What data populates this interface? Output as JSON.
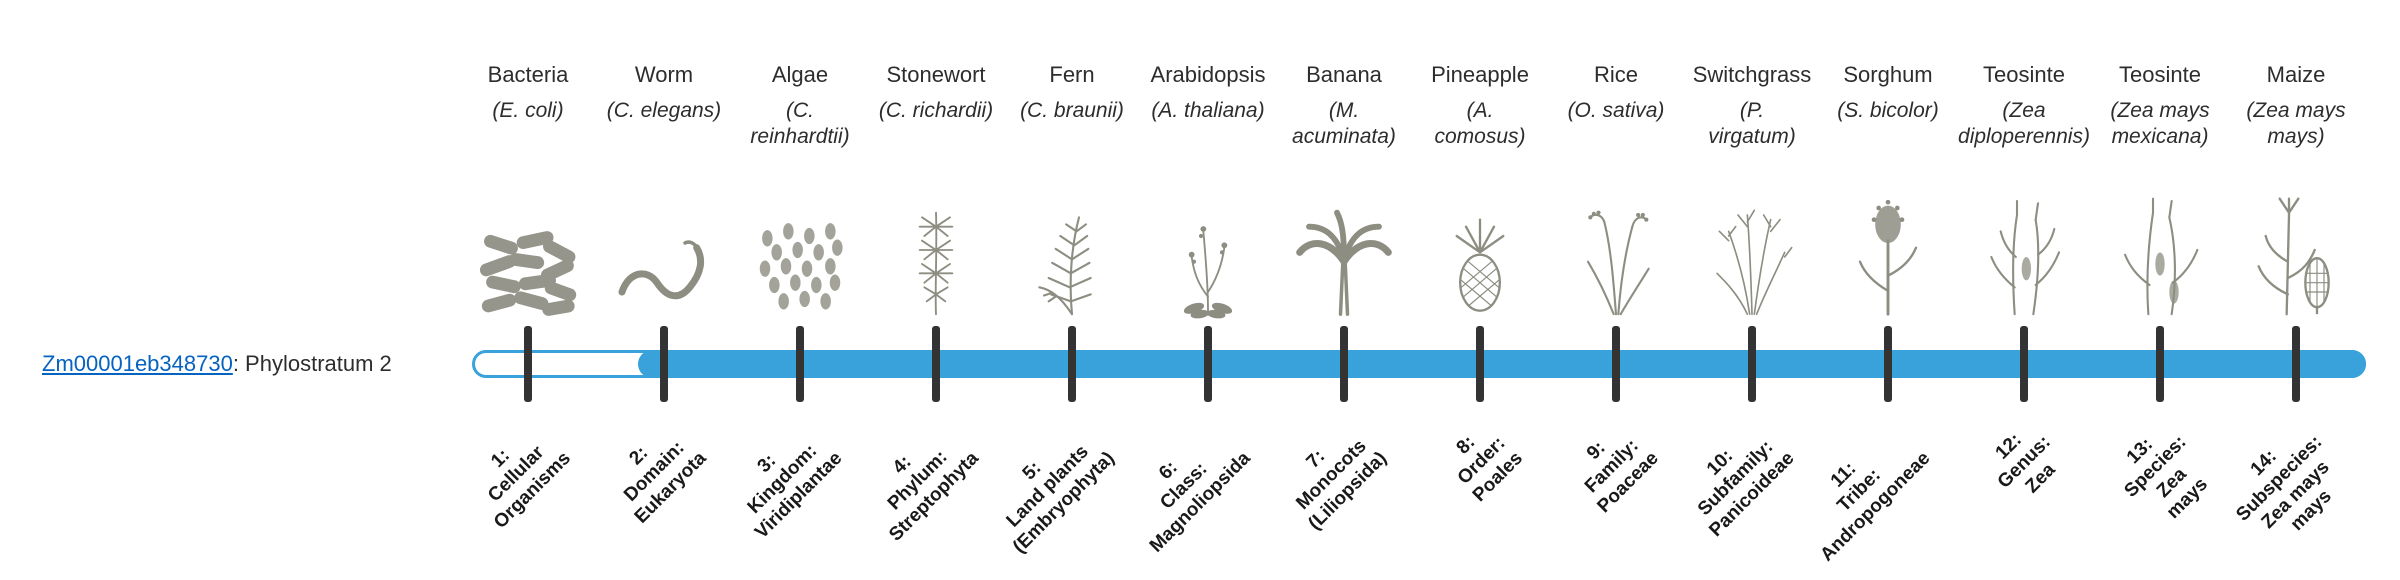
{
  "theme": {
    "bar_color": "#39A2DB",
    "tick_color": "#333333",
    "link_color": "#0563C1",
    "icon_color": "#8D8D82",
    "text_color": "#2D2D2D"
  },
  "gene": {
    "id": "Zm00001eb348730",
    "suffix": ": Phylostratum 2",
    "phylostratum": 2
  },
  "organisms": [
    {
      "name": "Bacteria",
      "sci": "(E. coli)",
      "icon": "bacteria"
    },
    {
      "name": "Worm",
      "sci": "(C. elegans)",
      "icon": "worm"
    },
    {
      "name": "Algae",
      "sci": "(C.\nreinhardtii)",
      "icon": "algae"
    },
    {
      "name": "Stonewort",
      "sci": "(C. richardii)",
      "icon": "stonewort"
    },
    {
      "name": "Fern",
      "sci": "(C. braunii)",
      "icon": "fern"
    },
    {
      "name": "Arabidopsis",
      "sci": "(A. thaliana)",
      "icon": "arabidopsis"
    },
    {
      "name": "Banana",
      "sci": "(M.\nacuminata)",
      "icon": "banana"
    },
    {
      "name": "Pineapple",
      "sci": "(A.\ncomosus)",
      "icon": "pineapple"
    },
    {
      "name": "Rice",
      "sci": "(O. sativa)",
      "icon": "rice"
    },
    {
      "name": "Switchgrass",
      "sci": "(P.\nvirgatum)",
      "icon": "switchgrass"
    },
    {
      "name": "Sorghum",
      "sci": "(S. bicolor)",
      "icon": "sorghum"
    },
    {
      "name": "Teosinte",
      "sci": "(Zea\ndiploperennis)",
      "icon": "teosinte-diploperennis"
    },
    {
      "name": "Teosinte",
      "sci": "(Zea mays\nmexicana)",
      "icon": "teosinte-mexicana"
    },
    {
      "name": "Maize",
      "sci": "(Zea mays\nmays)",
      "icon": "maize"
    }
  ],
  "phylostrata": [
    {
      "label": "1:\nCellular\nOrganisms"
    },
    {
      "label": "2:\nDomain:\nEukaryota"
    },
    {
      "label": "3:\nKingdom:\nViridiplantae"
    },
    {
      "label": "4:\nPhylum:\nStreptophyta"
    },
    {
      "label": "5:\nLand plants\n(Embryophyta)"
    },
    {
      "label": "6:\nClass:\nMagnoliopsida"
    },
    {
      "label": "7:\nMonocots\n(Liliopsida)"
    },
    {
      "label": "8:\nOrder:\nPoales"
    },
    {
      "label": "9:\nFamily:\nPoaceae"
    },
    {
      "label": "10:\nSubfamily:\nPanicoideae"
    },
    {
      "label": "11:\nTribe:\nAndropogoneae"
    },
    {
      "label": "12:\nGenus:\nZea"
    },
    {
      "label": "13:\nSpecies:\nZea\nmays"
    },
    {
      "label": "14:\nSubspecies:\nZea mays\nmays"
    }
  ]
}
